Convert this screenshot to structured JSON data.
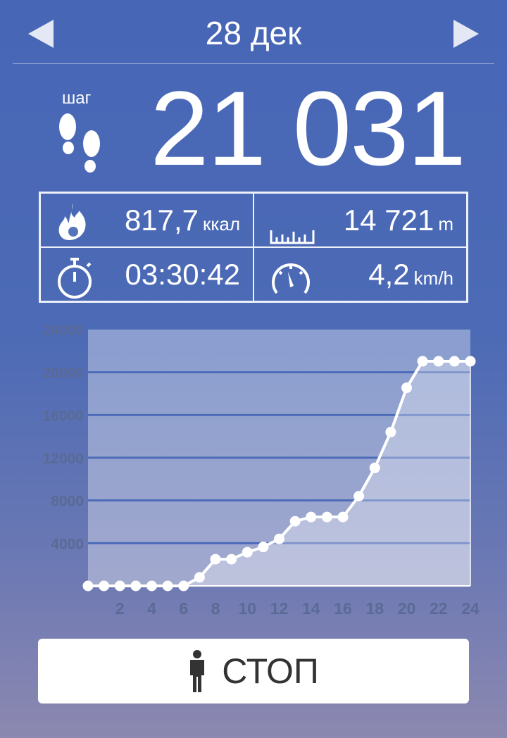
{
  "header": {
    "date": "28 дек",
    "prev_icon": "triangle-left-icon",
    "next_icon": "triangle-right-icon"
  },
  "steps": {
    "label": "шаг",
    "value": "21 031",
    "icon": "footprints-icon"
  },
  "stats": {
    "calories": {
      "value": "817,7",
      "unit": "ккал",
      "icon": "fire-icon"
    },
    "distance": {
      "value": "14 721",
      "unit": "m",
      "icon": "ruler-icon"
    },
    "duration": {
      "value": "03:30:42",
      "icon": "stopwatch-icon"
    },
    "speed": {
      "value": "4,2",
      "unit": "km/h",
      "icon": "speedometer-icon"
    }
  },
  "chart_data": {
    "type": "area",
    "x": [
      0,
      1,
      2,
      3,
      4,
      5,
      6,
      7,
      8,
      9,
      10,
      11,
      12,
      13,
      14,
      15,
      16,
      17,
      18,
      19,
      20,
      21,
      22,
      23,
      24
    ],
    "values": [
      0,
      0,
      0,
      0,
      0,
      0,
      0,
      800,
      2500,
      2500,
      3150,
      3650,
      4400,
      6050,
      6450,
      6450,
      6450,
      8400,
      11050,
      14400,
      18550,
      21031,
      21031,
      21031,
      21031
    ],
    "xticks": [
      "2",
      "4",
      "6",
      "8",
      "10",
      "12",
      "14",
      "16",
      "18",
      "20",
      "22",
      "24"
    ],
    "yticks": [
      "4000",
      "8000",
      "12000",
      "16000",
      "20000",
      "24000"
    ],
    "xlim": [
      0,
      24
    ],
    "ylim": [
      0,
      24000
    ],
    "grid": true
  },
  "button": {
    "label": "СТОП",
    "icon": "person-icon"
  },
  "colors": {
    "bg_top": "#4766b6",
    "bg_bottom": "#8c88b0",
    "gridline": "#4d6bb8",
    "tick": "#5a6a95"
  }
}
